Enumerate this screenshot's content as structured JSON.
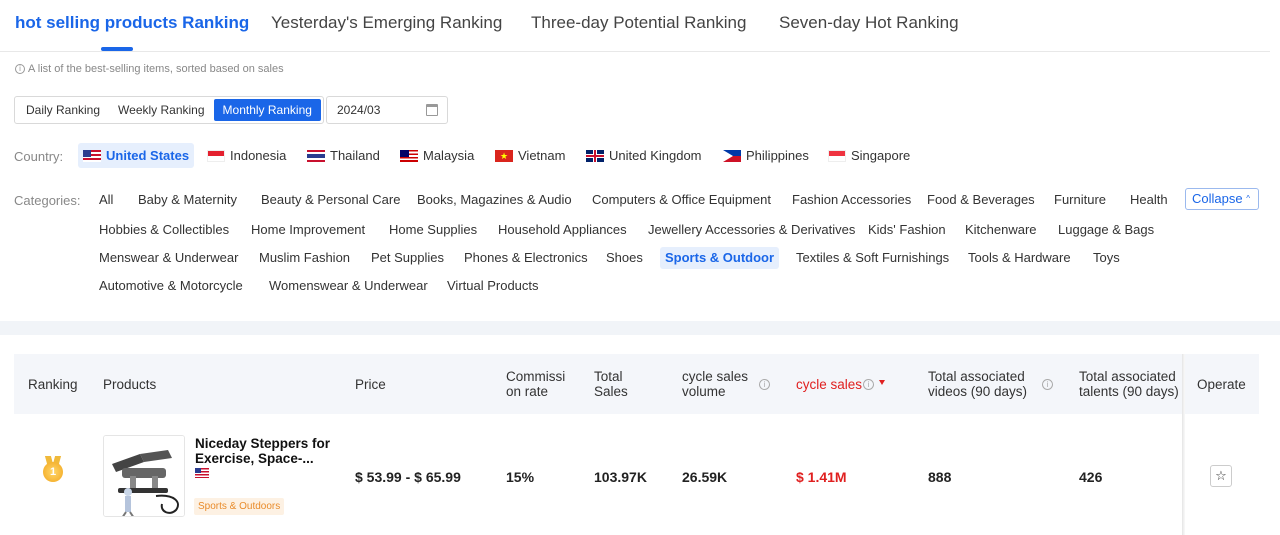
{
  "tabs": [
    {
      "label": "hot selling products Ranking",
      "active": true
    },
    {
      "label": "Yesterday's Emerging Ranking"
    },
    {
      "label": "Three-day Potential Ranking"
    },
    {
      "label": "Seven-day Hot Ranking"
    }
  ],
  "description": "A list of the best-selling items, sorted based on sales",
  "period_options": [
    "Daily Ranking",
    "Weekly Ranking",
    "Monthly Ranking"
  ],
  "period_selected": "Monthly Ranking",
  "date_value": "2024/03",
  "country_label": "Country:",
  "countries": [
    "United States",
    "Indonesia",
    "Thailand",
    "Malaysia",
    "Vietnam",
    "United Kingdom",
    "Philippines",
    "Singapore"
  ],
  "country_selected": "United States",
  "categories_label": "Categories:",
  "categories": [
    "All",
    "Baby & Maternity",
    "Beauty & Personal Care",
    "Books, Magazines & Audio",
    "Computers & Office Equipment",
    "Fashion Accessories",
    "Food & Beverages",
    "Furniture",
    "Health",
    "Hobbies & Collectibles",
    "Home Improvement",
    "Home Supplies",
    "Household Appliances",
    "Jewellery Accessories & Derivatives",
    "Kids' Fashion",
    "Kitchenware",
    "Luggage & Bags",
    "Menswear & Underwear",
    "Muslim Fashion",
    "Pet Supplies",
    "Phones & Electronics",
    "Shoes",
    "Sports & Outdoor",
    "Textiles & Soft Furnishings",
    "Tools & Hardware",
    "Toys",
    "Automotive & Motorcycle",
    "Womenswear & Underwear",
    "Virtual Products"
  ],
  "category_selected": "Sports & Outdoor",
  "collapse_label": "Collapse",
  "table": {
    "headers": {
      "ranking": "Ranking",
      "products": "Products",
      "price": "Price",
      "commission": "Commissi\non rate",
      "total_sales": "Total\nSales",
      "cycle_volume": "cycle sales\nvolume",
      "cycle_sales": "cycle sales",
      "videos": "Total associated\nvideos (90 days)",
      "talents": "Total associated\ntalents (90 days)",
      "operate": "Operate"
    },
    "rows": [
      {
        "rank": "1",
        "product_name": "Niceday Steppers for Exercise, Space-...",
        "product_tag": "Sports & Outdoors",
        "price": "$ 53.99 - $ 65.99",
        "commission": "15%",
        "total_sales": "103.97K",
        "cycle_volume": "26.59K",
        "cycle_sales": "$ 1.41M",
        "videos": "888",
        "talents": "426"
      }
    ]
  },
  "colors": {
    "accent": "#1a66e8",
    "highlight": "#e02020",
    "tag_bg": "#fdf1e3",
    "tag_text": "#e98b2a"
  }
}
